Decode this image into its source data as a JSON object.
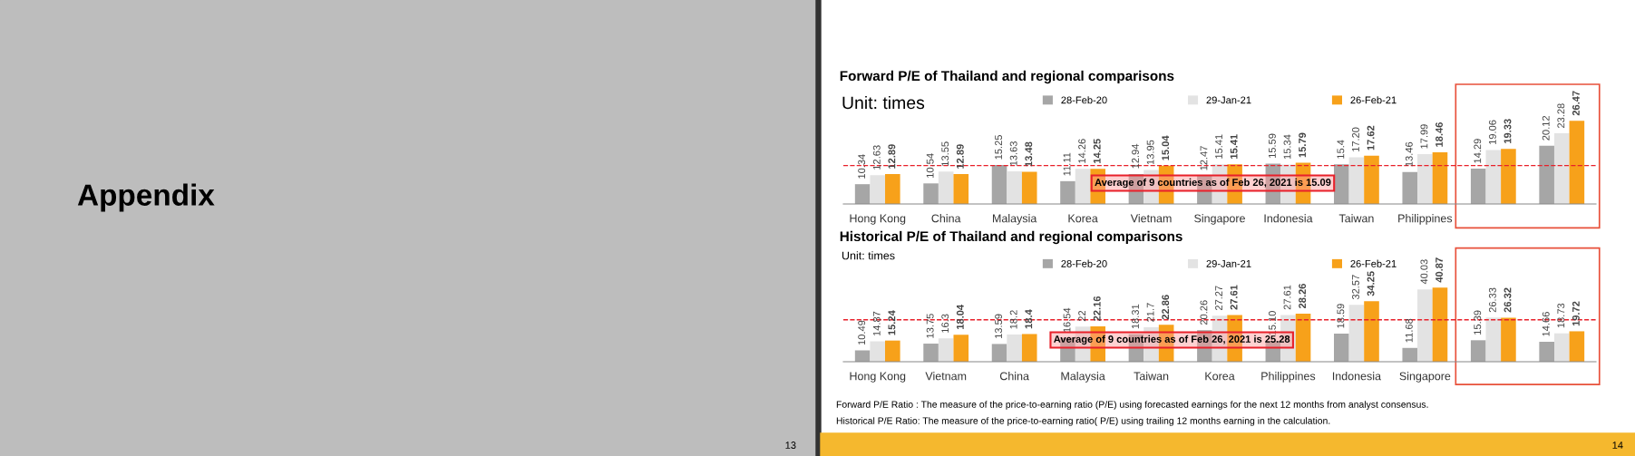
{
  "chart_data": [
    {
      "type": "other",
      "annotations": [
        "Appendix",
        "13",
        "14"
      ]
    },
    {
      "type": "bar",
      "title": "Forward P/E of Thailand and regional comparisons",
      "annotations": [
        "Unit: times"
      ],
      "categories": [
        "Hong Kong",
        "China",
        "Malaysia",
        "Korea",
        "Vietnam",
        "Singapore",
        "Indonesia",
        "Taiwan",
        "Philippines",
        null,
        null
      ],
      "series": [
        {
          "name": "28-Feb-20",
          "color": "#a6a6a6",
          "values": [
            10.34,
            10.54,
            15.25,
            11.11,
            12.94,
            12.47,
            15.59,
            15.4,
            13.46,
            14.29,
            20.12
          ],
          "value_labels": [
            "10.34",
            "10.54",
            "15.25",
            "11.11",
            "12.94",
            "12.47",
            "15.59",
            "15.4",
            "13.46",
            "14.29",
            "20.12"
          ]
        },
        {
          "name": "29-Jan-21",
          "color": "#e3e3e3",
          "values": [
            12.63,
            13.55,
            13.63,
            14.26,
            13.95,
            15.41,
            15.34,
            17.2,
            17.99,
            19.06,
            23.28
          ],
          "value_labels": [
            "12.63",
            "13.55",
            "13.63",
            "14.26",
            "13.95",
            "15.41",
            "15.34",
            "17.20",
            "17.99",
            "19.06",
            "23.28"
          ]
        },
        {
          "name": "26-Feb-21",
          "color": "#f7a11a",
          "values": [
            12.89,
            12.89,
            13.48,
            14.25,
            15.04,
            15.41,
            15.79,
            17.62,
            18.46,
            19.33,
            26.47
          ],
          "value_labels": [
            "12.89",
            "12.89",
            "13.48",
            "14.25",
            "15.04",
            "15.41",
            "15.79",
            "17.62",
            "18.46",
            "19.33",
            "26.47"
          ]
        }
      ],
      "ylim": [
        5.3,
        33
      ],
      "tick_labels": "x",
      "legend": "top",
      "grid": false,
      "ref_lines": [
        {
          "axis": "y",
          "value": 15.09,
          "label": "Average of 9 countries as of Feb 26, 2021 is 15.09",
          "color": "#e8202a",
          "line_style": "dashed"
        }
      ]
    },
    {
      "type": "bar",
      "title": "Historical P/E of Thailand and regional comparisons",
      "annotations": [
        "Unit: times",
        "Forward P/E Ratio : The measure of the price-to-earning ratio (P/E) using forecasted earnings for the next 12 months from analyst consensus.",
        "Historical P/E Ratio: The measure of the price-to-earning ratio( P/E) using trailing 12 months earning in the calculation."
      ],
      "categories": [
        "Hong Kong",
        "Vietnam",
        "China",
        "Malaysia",
        "Taiwan",
        "Korea",
        "Philippines",
        "Indonesia",
        "Singapore",
        null,
        null
      ],
      "series": [
        {
          "name": "28-Feb-20",
          "color": "#a6a6a6",
          "values": [
            10.49,
            13.75,
            13.59,
            16.54,
            18.31,
            20.26,
            15.1,
            18.59,
            11.68,
            15.39,
            14.66
          ],
          "value_labels": [
            "10.49",
            "13.75",
            "13.59",
            "16.54",
            "18.31",
            "20.26",
            "15.10",
            "18.59",
            "11.68",
            "15.39",
            "14.66"
          ]
        },
        {
          "name": "29-Jan-21",
          "color": "#e3e3e3",
          "values": [
            14.87,
            16.3,
            18.2,
            22,
            21.7,
            27.27,
            27.61,
            32.57,
            40.03,
            26.33,
            18.73
          ],
          "value_labels": [
            "14.87",
            "16.3",
            "18.2",
            "22",
            "21.7",
            "27.27",
            "27.61",
            "32.57",
            "40.03",
            "26.33",
            "18.73"
          ]
        },
        {
          "name": "26-Feb-21",
          "color": "#f7a11a",
          "values": [
            15.24,
            18.04,
            18.4,
            22.16,
            22.86,
            27.61,
            28.26,
            34.25,
            40.87,
            26.32,
            19.72
          ],
          "value_labels": [
            "15.24",
            "18.04",
            "18.4",
            "22.16",
            "22.86",
            "27.61",
            "28.26",
            "34.25",
            "40.87",
            "26.32",
            "19.72"
          ]
        }
      ],
      "ylim": [
        5,
        55
      ],
      "tick_labels": "x",
      "legend": "top",
      "grid": false,
      "ref_lines": [
        {
          "axis": "y",
          "value": 25.28,
          "label": "Average of 9 countries as of Feb 26, 2021 is 25.28",
          "color": "#e8202a",
          "line_style": "dashed"
        }
      ]
    }
  ]
}
